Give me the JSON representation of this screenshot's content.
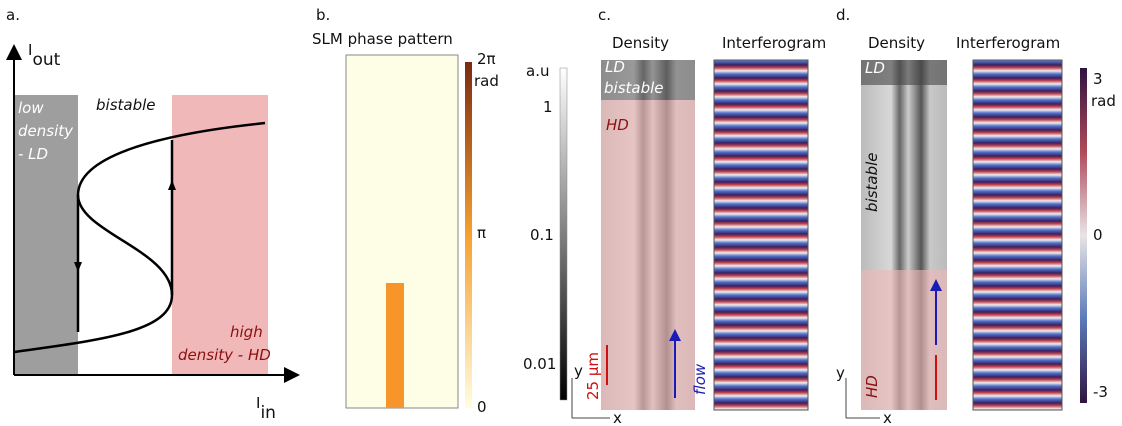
{
  "panel_a": {
    "label": "a.",
    "y_axis": "I",
    "y_axis_sub": "out",
    "x_axis": "I",
    "x_axis_sub": "in",
    "regions": [
      "low",
      "density",
      "- LD",
      "bistable",
      "high",
      "density - HD"
    ]
  },
  "panel_b": {
    "label": "b.",
    "title": "SLM phase pattern",
    "colorbar_labels": [
      "2π",
      "rad",
      "π",
      "0"
    ]
  },
  "panel_c": {
    "label": "c.",
    "titles": [
      "Density",
      "Interferogram"
    ],
    "colorbar_labels": [
      "a.u",
      "1",
      "0.1",
      "0.01"
    ],
    "annotations": [
      "LD",
      "bistable",
      "HD"
    ],
    "scale_bar": "25 µm",
    "flow": "flow",
    "axes": [
      "y",
      "x"
    ]
  },
  "panel_d": {
    "label": "d.",
    "titles": [
      "Density",
      "Interferogram"
    ],
    "colorbar_labels": [
      "3",
      "rad",
      "0",
      "-3"
    ],
    "annotations": [
      "LD",
      "bistable",
      "HD"
    ],
    "axes": [
      "y",
      "x"
    ]
  }
}
